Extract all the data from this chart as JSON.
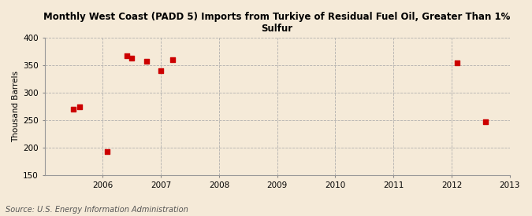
{
  "title": "Monthly West Coast (PADD 5) Imports from Turkiye of Residual Fuel Oil, Greater Than 1%\nSulfur",
  "ylabel": "Thousand Barrels",
  "source": "Source: U.S. Energy Information Administration",
  "background_color": "#f5ead8",
  "plot_background_color": "#f5ead8",
  "scatter_color": "#cc0000",
  "marker": "s",
  "marker_size": 4,
  "xlim": [
    2005.0,
    2013.0
  ],
  "ylim": [
    150,
    400
  ],
  "xticks": [
    2006,
    2007,
    2008,
    2009,
    2010,
    2011,
    2012,
    2013
  ],
  "yticks": [
    150,
    200,
    250,
    300,
    350,
    400
  ],
  "data_x": [
    2005.5,
    2005.6,
    2006.08,
    2006.42,
    2006.5,
    2006.75,
    2007.0,
    2007.2,
    2012.1,
    2012.58
  ],
  "data_y": [
    270,
    275,
    193,
    368,
    363,
    357,
    340,
    360,
    355,
    248
  ]
}
